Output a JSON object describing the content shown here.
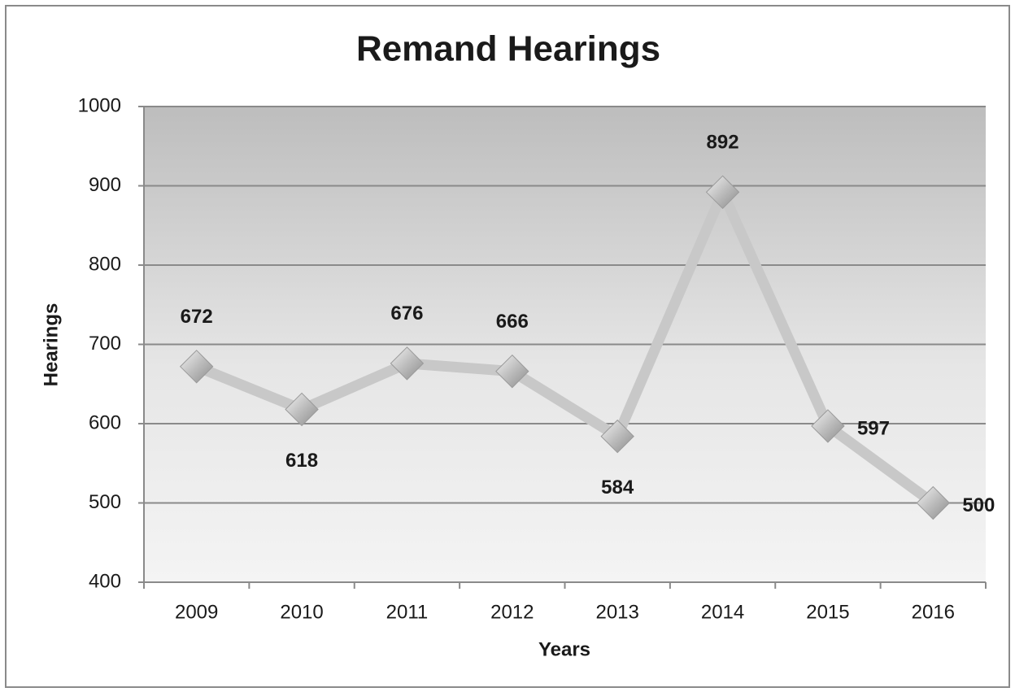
{
  "chart_data": {
    "type": "line",
    "title": "Remand Hearings",
    "x_label": "Years",
    "y_label": "Hearings",
    "categories": [
      "2009",
      "2010",
      "2011",
      "2012",
      "2013",
      "2014",
      "2015",
      "2016"
    ],
    "series": [
      {
        "name": "Hearings",
        "color": "#c8c8c8",
        "values": [
          672,
          618,
          676,
          666,
          584,
          892,
          597,
          500
        ]
      }
    ],
    "ylim": [
      400,
      1000
    ],
    "yticks": [
      400,
      500,
      600,
      700,
      800,
      900,
      1000
    ],
    "grid": true
  }
}
